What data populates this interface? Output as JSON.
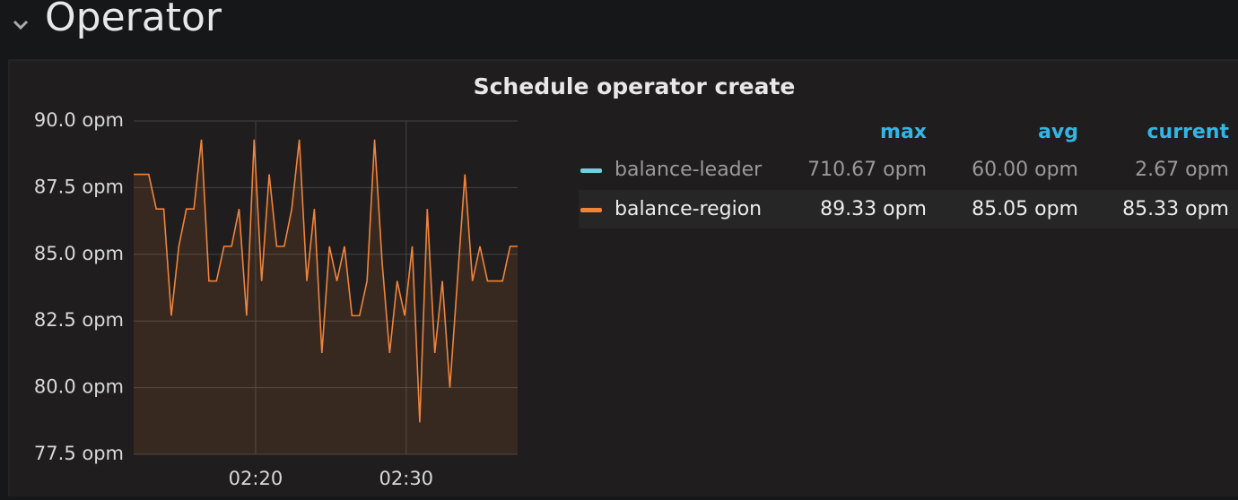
{
  "header": {
    "title": "Operator"
  },
  "chart_data": {
    "type": "line",
    "title": "Schedule operator create",
    "x": [
      11.9,
      12.4,
      12.9,
      13.4,
      13.9,
      14.4,
      14.9,
      15.4,
      15.9,
      16.4,
      16.9,
      17.4,
      17.9,
      18.4,
      18.9,
      19.4,
      19.9,
      20.4,
      20.9,
      21.4,
      21.9,
      22.4,
      22.9,
      23.4,
      23.9,
      24.4,
      24.9,
      25.4,
      25.9,
      26.4,
      26.9,
      27.4,
      27.9,
      28.4,
      28.9,
      29.4,
      29.9,
      30.4,
      30.9,
      31.4,
      31.9,
      32.4,
      32.9,
      33.4,
      33.9,
      34.4,
      34.9,
      35.4,
      35.9,
      36.4,
      36.9,
      37.4
    ],
    "xlim": [
      11.9,
      37.4
    ],
    "xticks": [
      {
        "value": 20,
        "label": "02:20"
      },
      {
        "value": 30,
        "label": "02:30"
      }
    ],
    "ylim": [
      77.5,
      90
    ],
    "yticks": [
      {
        "value": 77.5,
        "label": "77.5 opm"
      },
      {
        "value": 80,
        "label": "80.0 opm"
      },
      {
        "value": 82.5,
        "label": "82.5 opm"
      },
      {
        "value": 85,
        "label": "85.0 opm"
      },
      {
        "value": 87.5,
        "label": "87.5 opm"
      },
      {
        "value": 90,
        "label": "90.0 opm"
      }
    ],
    "grid": true,
    "legend_columns": [
      "max",
      "avg",
      "current"
    ],
    "series": [
      {
        "name": "balance-leader",
        "color": "#6ed0e0",
        "stats": [
          "710.67 opm",
          "60.00 opm",
          "2.67 opm"
        ]
      },
      {
        "name": "balance-region",
        "color": "#ef843c",
        "stats": [
          "89.33 opm",
          "85.05 opm",
          "85.33 opm"
        ],
        "values": [
          88.0,
          88.0,
          88.0,
          86.7,
          86.7,
          82.7,
          85.3,
          86.7,
          86.7,
          89.3,
          84.0,
          84.0,
          85.3,
          85.3,
          86.7,
          82.7,
          89.3,
          84.0,
          88.0,
          85.3,
          85.3,
          86.7,
          89.3,
          84.0,
          86.7,
          81.3,
          85.3,
          84.0,
          85.3,
          82.7,
          82.7,
          84.0,
          89.3,
          84.7,
          81.3,
          84.0,
          82.7,
          85.3,
          78.7,
          86.7,
          81.3,
          84.0,
          80.0,
          84.0,
          88.0,
          84.0,
          85.3,
          84.0,
          84.0,
          84.0,
          85.3,
          85.3
        ]
      }
    ]
  }
}
